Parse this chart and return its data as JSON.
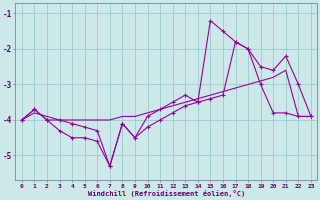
{
  "xlabel": "Windchill (Refroidissement éolien,°C)",
  "background_color": "#cce8e8",
  "grid_color": "#99cccc",
  "line_color": "#990099",
  "x": [
    0,
    1,
    2,
    3,
    4,
    5,
    6,
    7,
    8,
    9,
    10,
    11,
    12,
    13,
    14,
    15,
    16,
    17,
    18,
    19,
    20,
    21,
    22,
    23
  ],
  "line1": [
    -4.0,
    -3.7,
    -4.0,
    -4.0,
    -4.1,
    -4.2,
    -4.3,
    -5.3,
    -4.1,
    -4.5,
    -3.9,
    -3.7,
    -3.5,
    -3.3,
    -3.5,
    -1.2,
    -1.5,
    -1.8,
    -2.0,
    -2.5,
    -2.6,
    -2.2,
    -3.0,
    -3.9
  ],
  "line2": [
    -4.0,
    -3.8,
    -3.9,
    -4.0,
    -4.0,
    -4.0,
    -4.0,
    -4.0,
    -3.9,
    -3.9,
    -3.8,
    -3.7,
    -3.6,
    -3.5,
    -3.4,
    -3.3,
    -3.2,
    -3.1,
    -3.0,
    -2.9,
    -2.8,
    -2.6,
    -3.9,
    -3.9
  ],
  "line3": [
    -4.0,
    -3.7,
    -4.0,
    -4.3,
    -4.5,
    -4.5,
    -4.6,
    -5.3,
    -4.1,
    -4.5,
    -4.2,
    -4.0,
    -3.8,
    -3.6,
    -3.5,
    -3.4,
    -3.3,
    -1.8,
    -2.0,
    -3.0,
    -3.8,
    -3.8,
    -3.9,
    -3.9
  ],
  "ylim": [
    -5.7,
    -0.7
  ],
  "yticks": [
    -5,
    -4,
    -3,
    -2,
    -1
  ],
  "xlim": [
    -0.5,
    23.5
  ]
}
